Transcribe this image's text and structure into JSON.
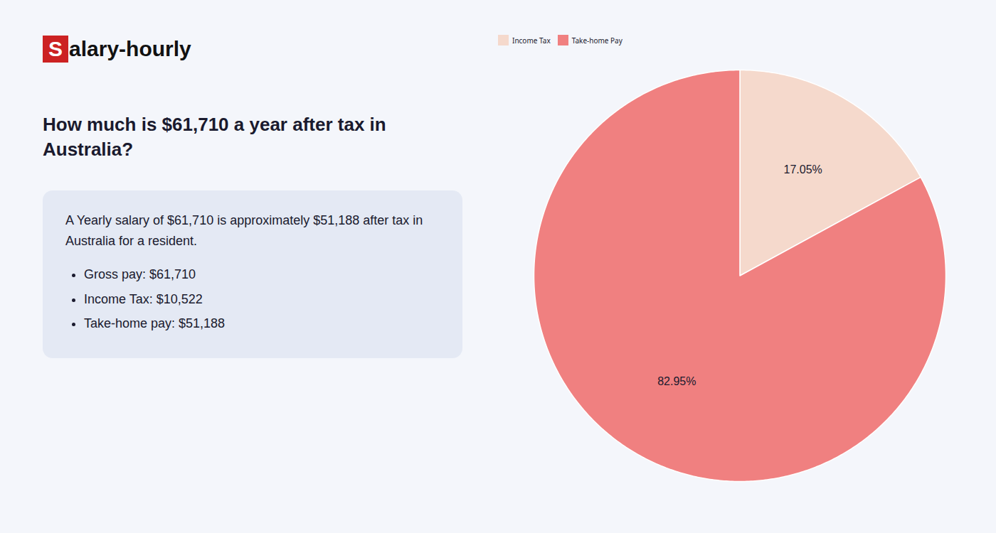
{
  "chart_data": {
    "type": "pie",
    "title": "How much is $61,710 a year after tax in Australia?",
    "annotations": [
      "Salary-hourly",
      "A Yearly salary of $61,710 is approximately $51,188 after tax in Australia for a resident.",
      "Gross pay: $61,710",
      "Income Tax: $10,522",
      "Take-home pay: $51,188"
    ],
    "categories": [
      "Income Tax",
      "Take-home Pay"
    ],
    "values": [
      17.05,
      82.95
    ],
    "value_labels": [
      "17.05%",
      "82.95%"
    ],
    "colors": [
      "#f5d9cc",
      "#f08080"
    ],
    "data_labels": true,
    "legend": "upper left"
  }
}
